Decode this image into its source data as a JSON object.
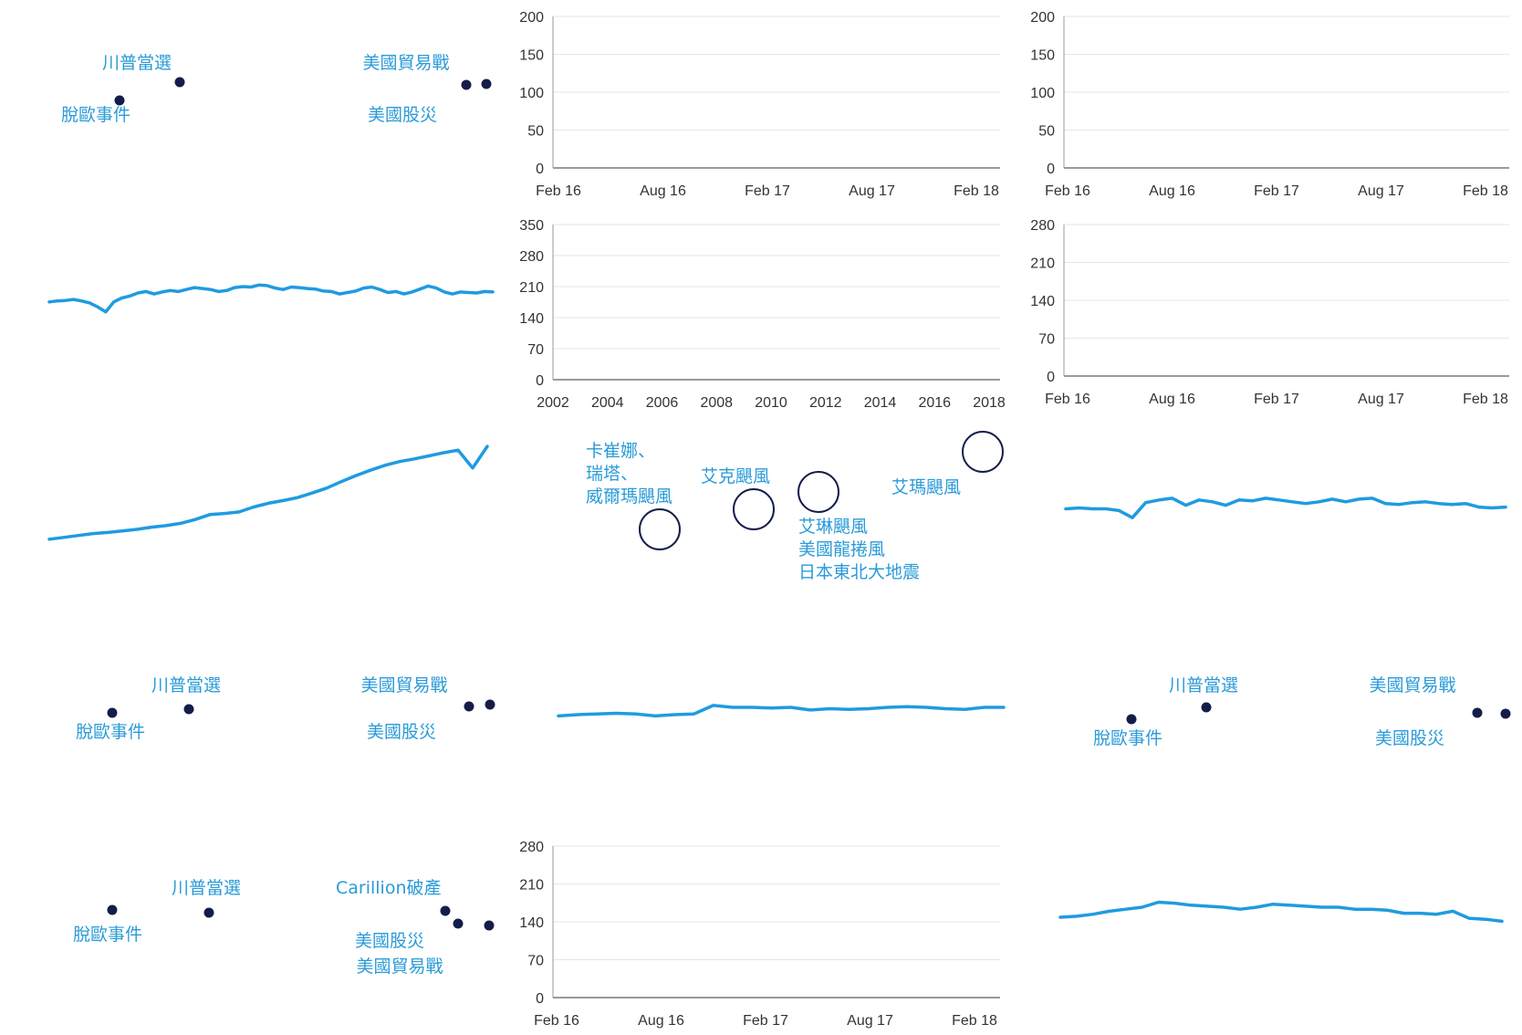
{
  "colors": {
    "line": "#1f9be0",
    "annotation_text": "#2a9bd8",
    "dot": "#141d4a",
    "axis_text": "#333333",
    "grid": "#e6e6e6",
    "axis": "#9a9a9a"
  },
  "chart_data": [
    {
      "id": "c1",
      "type": "line",
      "x_ticks": [
        "Feb 16",
        "Aug 16",
        "Feb 17",
        "Aug 17",
        "Feb 18"
      ],
      "y_ticks": [
        0,
        50,
        100,
        150,
        200
      ],
      "ylim": [
        0,
        200
      ],
      "grid": true,
      "series": []
    },
    {
      "id": "c2",
      "type": "line",
      "x_ticks": [
        "Feb 16",
        "Aug 16",
        "Feb 17",
        "Aug 17",
        "Feb 18"
      ],
      "y_ticks": [
        0,
        50,
        100,
        150,
        200
      ],
      "ylim": [
        0,
        200
      ],
      "grid": true,
      "series": []
    },
    {
      "id": "c3",
      "type": "line",
      "x_ticks": [
        "2002",
        "2004",
        "2006",
        "2008",
        "2010",
        "2012",
        "2014",
        "2016",
        "2018"
      ],
      "y_ticks": [
        0,
        70,
        140,
        210,
        280,
        350
      ],
      "ylim": [
        0,
        350
      ],
      "grid": true,
      "series": []
    },
    {
      "id": "c4",
      "type": "line",
      "x_ticks": [
        "Feb 16",
        "Aug 16",
        "Feb 17",
        "Aug 17",
        "Feb 18"
      ],
      "y_ticks": [
        0,
        70,
        140,
        210,
        280
      ],
      "ylim": [
        0,
        280
      ],
      "grid": true,
      "series": []
    },
    {
      "id": "c5",
      "type": "line",
      "x_ticks": [
        "Feb 16",
        "Aug 16",
        "Feb 17",
        "Aug 17",
        "Feb 18"
      ],
      "y_ticks": [
        0,
        70,
        140,
        210,
        280
      ],
      "ylim": [
        0,
        280
      ],
      "grid": true,
      "series": []
    },
    {
      "id": "s1",
      "type": "line",
      "note": "floating series, top-left",
      "series": [
        {
          "values": [
            178,
            180,
            181,
            183,
            180,
            176,
            168,
            158,
            178,
            186,
            190,
            196,
            199,
            194,
            198,
            201,
            199,
            203,
            207,
            205,
            203,
            199,
            201,
            207,
            209,
            208,
            212,
            211,
            206,
            203,
            208,
            207,
            205,
            204,
            200,
            199,
            194,
            197,
            200,
            206,
            208,
            203,
            197,
            199,
            194,
            198,
            204,
            210,
            206,
            198,
            194,
            198,
            197,
            196,
            199,
            198
          ]
        }
      ]
    },
    {
      "id": "s2",
      "type": "line",
      "note": "floating series, long uptrend",
      "series": [
        {
          "values": [
            70,
            75,
            80,
            85,
            88,
            92,
            96,
            102,
            106,
            112,
            122,
            135,
            138,
            142,
            155,
            165,
            172,
            180,
            192,
            205,
            222,
            238,
            252,
            265,
            275,
            282,
            290,
            298,
            305,
            258,
            315
          ]
        }
      ]
    },
    {
      "id": "s3",
      "type": "line",
      "note": "floating series, mid-right",
      "series": [
        {
          "values": [
            160,
            161,
            160,
            160,
            158,
            150,
            167,
            170,
            172,
            164,
            170,
            168,
            164,
            170,
            169,
            172,
            170,
            168,
            166,
            168,
            171,
            168,
            171,
            172,
            166,
            165,
            167,
            168,
            166,
            165,
            166,
            162,
            161,
            162
          ]
        }
      ]
    },
    {
      "id": "s4",
      "type": "line",
      "note": "floating series, center",
      "series": [
        {
          "values": [
            175,
            177,
            178,
            179,
            178,
            175,
            177,
            178,
            191,
            188,
            188,
            187,
            188,
            184,
            186,
            185,
            186,
            188,
            189,
            188,
            186,
            185,
            188,
            188
          ]
        }
      ]
    },
    {
      "id": "s5",
      "type": "line",
      "note": "floating series, bottom-right",
      "series": [
        {
          "values": [
            150,
            151,
            153,
            156,
            158,
            160,
            165,
            164,
            162,
            161,
            160,
            158,
            160,
            163,
            162,
            161,
            160,
            160,
            158,
            158,
            157,
            154,
            154,
            153,
            156,
            149,
            148,
            146
          ]
        }
      ]
    }
  ],
  "annotations": {
    "a1": [
      "川普當選",
      "美國貿易戰",
      "脫歐事件",
      "美國股災"
    ],
    "a3": [
      "卡崔娜、",
      "瑞塔、",
      "威爾瑪颶風",
      "艾克颶風",
      "艾瑪颶風",
      "艾琳颶風",
      "美國龍捲風",
      "日本東北大地震"
    ],
    "a4": [
      "川普當選",
      "美國貿易戰",
      "脫歐事件",
      "美國股災"
    ],
    "a5": [
      "川普當選",
      "美國貿易戰",
      "脫歐事件",
      "美國股災"
    ],
    "a6": [
      "川普當選",
      "Carillion破產",
      "脫歐事件",
      "美國股災",
      "美國貿易戰"
    ]
  }
}
